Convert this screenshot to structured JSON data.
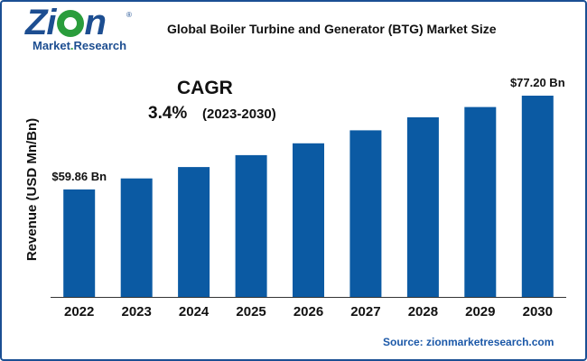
{
  "logo": {
    "brand": "Zion",
    "sub_left": "Market",
    "sub_dot": ".",
    "sub_right": "Research",
    "registered": "®"
  },
  "header": {
    "title": "Global Boiler Turbine and Generator (BTG) Market Size"
  },
  "cagr": {
    "label": "CAGR",
    "value": "3.4%",
    "period": "(2023-2030)"
  },
  "footer": {
    "source": "Source: zionmarketresearch.com"
  },
  "colors": {
    "bar": "#0b5aa3",
    "frame": "#1b4f93",
    "source": "#1b58a8",
    "logo_green": "#2a9d3c"
  },
  "chart_data": {
    "type": "bar",
    "title": "Global Boiler Turbine and Generator (BTG) Market Size",
    "xlabel": "",
    "ylabel": "Revenue (USD Mn/Bn)",
    "categories": [
      "2022",
      "2023",
      "2024",
      "2025",
      "2026",
      "2027",
      "2028",
      "2029",
      "2030"
    ],
    "values": [
      59.86,
      61.9,
      64.0,
      66.2,
      68.4,
      70.8,
      73.2,
      75.1,
      77.2
    ],
    "ylim": [
      40,
      80
    ],
    "grid": false,
    "value_labels": [
      {
        "index": 0,
        "text": "$59.86 Bn"
      },
      {
        "index": 8,
        "text": "$77.20 Bn"
      }
    ]
  }
}
